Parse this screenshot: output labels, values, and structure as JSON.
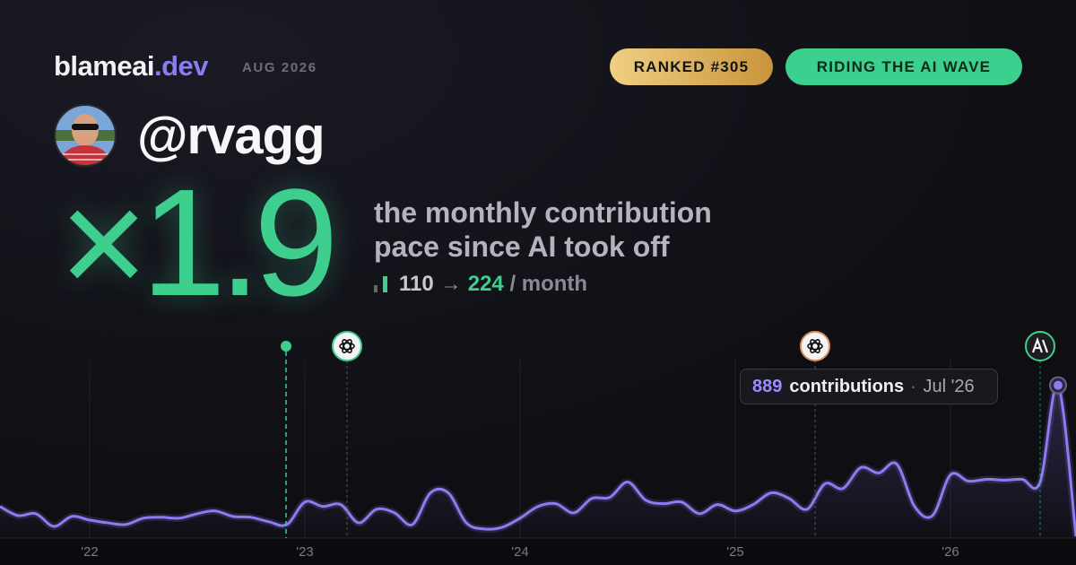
{
  "header": {
    "brand": "blameai",
    "brand_tld": ".dev",
    "period": "AUG 2026",
    "badges": [
      "RANKED #305",
      "RIDING THE AI WAVE"
    ]
  },
  "profile": {
    "handle": "@rvagg"
  },
  "headline": {
    "multiplier": "×1.9",
    "description": [
      "the monthly contribution",
      "pace since AI took off"
    ],
    "before": 110,
    "arrow": "→",
    "after": 224,
    "unit": "/ month"
  },
  "chart_data": {
    "type": "line",
    "color": "#8b7cf0",
    "categories": [
      null,
      null,
      null,
      null,
      null,
      "'22",
      null,
      null,
      null,
      null,
      null,
      null,
      null,
      null,
      null,
      null,
      null,
      "'23",
      null,
      null,
      null,
      null,
      null,
      null,
      null,
      null,
      null,
      null,
      null,
      "'24",
      null,
      null,
      null,
      null,
      null,
      null,
      null,
      null,
      null,
      null,
      null,
      "'25",
      null,
      null,
      null,
      null,
      null,
      null,
      null,
      null,
      null,
      null,
      null,
      "'26",
      null,
      null,
      null,
      null,
      null,
      null,
      null
    ],
    "values": [
      184,
      131,
      142,
      68,
      126,
      105,
      89,
      79,
      116,
      121,
      116,
      142,
      158,
      126,
      121,
      95,
      79,
      210,
      184,
      195,
      89,
      168,
      147,
      79,
      263,
      263,
      89,
      53,
      63,
      116,
      184,
      200,
      147,
      231,
      237,
      326,
      221,
      200,
      210,
      142,
      195,
      158,
      195,
      263,
      231,
      168,
      316,
      289,
      410,
      379,
      431,
      184,
      131,
      368,
      331,
      342,
      337,
      342,
      326,
      889,
      10
    ],
    "ylim": [
      0,
      1200
    ],
    "tooltip": {
      "label": "contributions",
      "separator": "·",
      "date": "Jul '26"
    }
  }
}
